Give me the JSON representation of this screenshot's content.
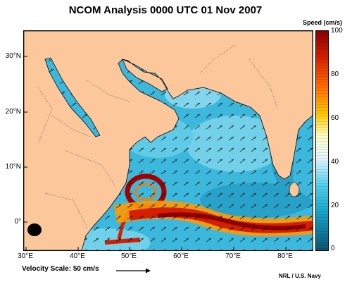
{
  "title": "NCOM Analysis 0000 UTC 01 Nov 2007",
  "colorbar": {
    "title": "Speed (cm/s)",
    "ticks": [
      "100",
      "80",
      "60",
      "40",
      "20",
      "0"
    ],
    "colors": [
      "#8b0000",
      "#d42000",
      "#ff6a00",
      "#ffc800",
      "#ffffc8",
      "#e6f5ff",
      "#55d2ee",
      "#18a8cc",
      "#0f7a9a",
      "#0b5670"
    ]
  },
  "map": {
    "lat_ticks": [
      "30°N",
      "20°N",
      "10°N",
      "0°"
    ],
    "lon_ticks": [
      "30°E",
      "40°E",
      "50°E",
      "60°E",
      "70°E",
      "80°E"
    ],
    "land_color": "#fcc89b",
    "ocean_color": "#3bb8dc"
  },
  "velocity_scale": "Velocity Scale: 50 cm/s",
  "credit": "NRL / U.S. Navy"
}
